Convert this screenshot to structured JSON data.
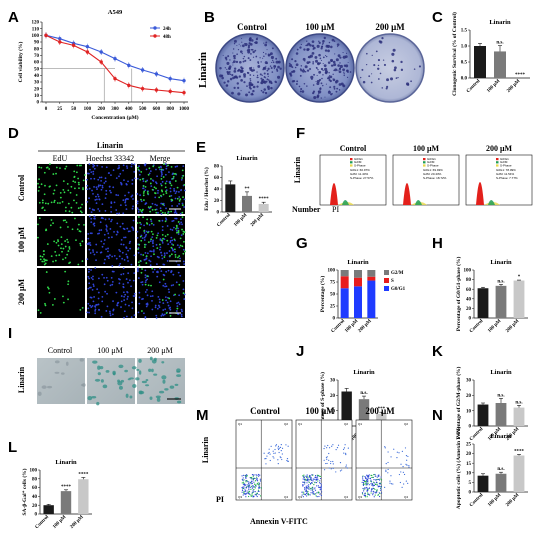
{
  "panels": [
    "A",
    "B",
    "C",
    "D",
    "E",
    "F",
    "G",
    "H",
    "I",
    "J",
    "K",
    "L",
    "M",
    "N"
  ],
  "treatments": [
    "Control",
    "100 μM",
    "200 μM"
  ],
  "drug": "Linarin",
  "B": {
    "row_label": "Linarin",
    "columns": [
      "Control",
      "100 μM",
      "200 μM"
    ]
  },
  "D": {
    "title": "Linarin",
    "columns": [
      "EdU",
      "Hoechst 33342",
      "Merge"
    ],
    "rows": [
      "Control",
      "100 μM",
      "200 μM"
    ]
  },
  "F": {
    "row_label": "Linarin",
    "number_label": "Number",
    "x_label": "PI",
    "plots": [
      {
        "title": "Control",
        "stats": [
          "G0G1: 60.97%",
          "G2M: 11.40%",
          "S-Phase: 27.57%"
        ]
      },
      {
        "title": "100 μM",
        "stats": [
          "G0G1: 69.93%",
          "G2M: 20.43%",
          "S-Phase: 18.72%"
        ]
      },
      {
        "title": "200 μM",
        "stats": [
          "G0G1: 78.09%",
          "G2M: 11.54%",
          "S-Phase: 7.77%"
        ]
      }
    ],
    "legend": [
      "G0/G1",
      "G2/M",
      "S-Phase"
    ]
  },
  "K": {
    "row_label": "Linarin",
    "columns": [
      "Control",
      "100 μM",
      "200 μM"
    ]
  },
  "M": {
    "row_label": "Linarin",
    "y_label": "PI",
    "x_label": "Annexin V-FITC",
    "columns": [
      "Control",
      "100 μM",
      "200 μM"
    ],
    "quadrants": [
      "Q1",
      "Q2",
      "Q3",
      "Q4"
    ]
  },
  "chart_data": [
    {
      "panel": "A",
      "type": "line",
      "title": "A549",
      "xlabel": "Concentration (μM)",
      "ylabel": "Cell viability (%)",
      "categories": [
        "0",
        "25",
        "50",
        "100",
        "200",
        "300",
        "400",
        "500",
        "600",
        "800",
        "1000"
      ],
      "ylim": [
        0,
        120
      ],
      "yticks": [
        0,
        10,
        20,
        30,
        40,
        50,
        60,
        70,
        80,
        90,
        100,
        110,
        120
      ],
      "series": [
        {
          "name": "24h",
          "color": "#3b5bd9",
          "values": [
            100,
            95,
            88,
            83,
            75,
            65,
            55,
            48,
            42,
            35,
            32
          ]
        },
        {
          "name": "48h",
          "color": "#e02424",
          "values": [
            100,
            90,
            85,
            75,
            60,
            35,
            25,
            20,
            18,
            16,
            14
          ]
        }
      ]
    },
    {
      "panel": "C",
      "type": "bar",
      "title": "Linarin",
      "ylabel": "Clonogenic Survival (% of Control)",
      "categories": [
        "Control",
        "100 μM",
        "200 μM"
      ],
      "values": [
        1.0,
        0.83,
        0.0
      ],
      "errors": [
        0.08,
        0.18,
        0.0
      ],
      "sig": [
        "",
        "n.s.",
        "****"
      ],
      "ylim": [
        0,
        1.5
      ],
      "yticks": [
        "0.0",
        "0.5",
        "1.0",
        "1.5"
      ],
      "colors": [
        "#1a1a1a",
        "#7a7a7a",
        "#c8c8c8"
      ]
    },
    {
      "panel": "E",
      "type": "bar",
      "title": "Linarin",
      "ylabel": "Edu / Hoechst (%)",
      "categories": [
        "Control",
        "100 μM",
        "200 μM"
      ],
      "values": [
        48,
        28,
        14
      ],
      "errors": [
        6,
        7,
        3
      ],
      "sig": [
        "",
        "**",
        "****"
      ],
      "ylim": [
        0,
        80
      ],
      "yticks": [
        "0",
        "20",
        "40",
        "60",
        "80"
      ],
      "colors": [
        "#1a1a1a",
        "#7a7a7a",
        "#c8c8c8"
      ]
    },
    {
      "panel": "G",
      "type": "bar",
      "title": "Linarin",
      "ylabel": "Percentage (%)",
      "categories": [
        "Control",
        "100 μM",
        "200 μM"
      ],
      "ylim": [
        0,
        100
      ],
      "yticks": [
        "0",
        "25",
        "50",
        "75",
        "100"
      ],
      "series": [
        {
          "name": "G0/G1",
          "color": "#1f3bff",
          "values": [
            62,
            66,
            78
          ]
        },
        {
          "name": "S",
          "color": "#e81c1c",
          "values": [
            25,
            18,
            8
          ]
        },
        {
          "name": "G2/M",
          "color": "#7a7a7a",
          "values": [
            13,
            16,
            14
          ]
        }
      ]
    },
    {
      "panel": "H",
      "type": "bar",
      "title": "Linarin",
      "ylabel": "Percentage of G0/G1-phase (%)",
      "categories": [
        "Control",
        "100 μM",
        "200 μM"
      ],
      "values": [
        62,
        67,
        78
      ],
      "errors": [
        2,
        3,
        1
      ],
      "sig": [
        "",
        "n.s.",
        "*"
      ],
      "ylim": [
        0,
        100
      ],
      "yticks": [
        "0",
        "20",
        "40",
        "60",
        "80",
        "100"
      ],
      "colors": [
        "#1a1a1a",
        "#7a7a7a",
        "#c8c8c8"
      ]
    },
    {
      "panel": "I",
      "type": "bar",
      "title": "Linarin",
      "ylabel": "Percentage of S-phase (%)",
      "categories": [
        "Control",
        "100 μM",
        "200 μM"
      ],
      "values": [
        22.5,
        17.5,
        8.0
      ],
      "errors": [
        2,
        2,
        1
      ],
      "sig": [
        "",
        "n.s.",
        "***"
      ],
      "ylim": [
        0,
        30
      ],
      "yticks": [
        "0",
        "10",
        "20",
        "30"
      ],
      "colors": [
        "#1a1a1a",
        "#7a7a7a",
        "#c8c8c8"
      ]
    },
    {
      "panel": "J",
      "type": "bar",
      "title": "Linarin",
      "ylabel": "Percentage of G2/M-phase (%)",
      "categories": [
        "Control",
        "100 μM",
        "200 μM"
      ],
      "values": [
        14,
        15,
        12
      ],
      "errors": [
        1,
        3,
        1.5
      ],
      "sig": [
        "",
        "n.s.",
        "n.s."
      ],
      "ylim": [
        0,
        30
      ],
      "yticks": [
        "0",
        "10",
        "20",
        "30"
      ],
      "colors": [
        "#1a1a1a",
        "#7a7a7a",
        "#c8c8c8"
      ]
    },
    {
      "panel": "L",
      "type": "bar",
      "title": "Linarin",
      "ylabel": "SA-β-Gal⁺ cells (%)",
      "categories": [
        "Control",
        "100 μM",
        "200 μM"
      ],
      "values": [
        20,
        52,
        79
      ],
      "errors": [
        2,
        3,
        4
      ],
      "sig": [
        "",
        "****",
        "****"
      ],
      "ylim": [
        0,
        100
      ],
      "yticks": [
        "0",
        "20",
        "40",
        "60",
        "80",
        "100"
      ],
      "colors": [
        "#1a1a1a",
        "#7a7a7a",
        "#c8c8c8"
      ]
    },
    {
      "panel": "N",
      "type": "bar",
      "title": "Linarin",
      "ylabel": "Apoptotic cells (%) (Annexin V/PI)",
      "categories": [
        "Control",
        "100 μM",
        "200 μM"
      ],
      "values": [
        8.5,
        9.5,
        19
      ],
      "errors": [
        1,
        0.8,
        0.6
      ],
      "sig": [
        "",
        "n.s.",
        "****"
      ],
      "ylim": [
        0,
        25
      ],
      "yticks": [
        "0",
        "5",
        "10",
        "15",
        "20",
        "25"
      ],
      "colors": [
        "#1a1a1a",
        "#7a7a7a",
        "#c8c8c8"
      ]
    }
  ]
}
